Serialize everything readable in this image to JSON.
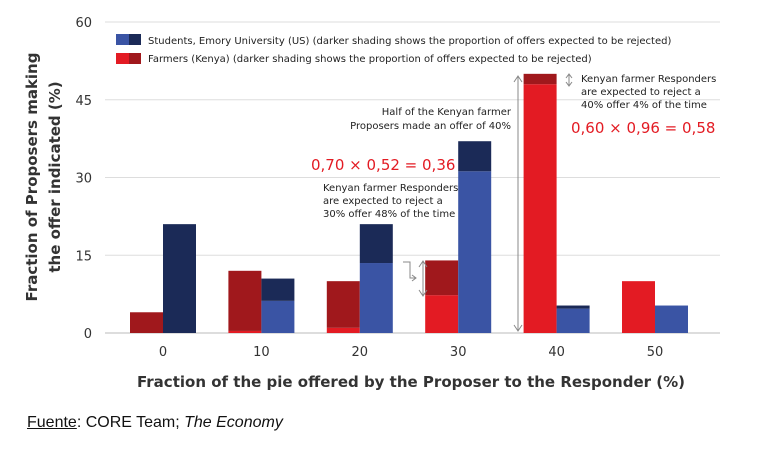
{
  "chart_data": {
    "type": "bar",
    "xlabel": "Fraction of the pie offered by the Proposer to the Responder (%)",
    "ylabel_line1": "Fraction of Proposers making",
    "ylabel_line2": "the offer indicated  (%)",
    "ylim": [
      0,
      60
    ],
    "yticks": [
      "0",
      "15",
      "30",
      "45",
      "60"
    ],
    "categories": [
      "0",
      "10",
      "20",
      "30",
      "40",
      "50"
    ],
    "grid": "horizontal",
    "legend_position": "top-left",
    "series": [
      {
        "key": "kenya",
        "name": "Farmers (Kenya) (darker shading shows the proportion of offers expected to be rejected)",
        "color_light": "#e31b23",
        "color_dark": "#a0181c",
        "totals": [
          4,
          12,
          10,
          14,
          50,
          10
        ],
        "rejected": [
          4,
          11.6,
          9,
          6.7,
          2,
          0
        ]
      },
      {
        "key": "emory",
        "name": "Students, Emory University (US) (darker shading shows the proportion of offers expected to be rejected)",
        "color_light": "#3a54a4",
        "color_dark": "#1b2a57",
        "totals": [
          21,
          10.5,
          21,
          37,
          5.3,
          5.3
        ],
        "rejected": [
          21,
          4.3,
          7.5,
          5.8,
          0.6,
          0
        ]
      }
    ],
    "annotations": {
      "half_line1": "Half of the Kenyan farmer",
      "half_line2": "Proposers made an offer of 40%",
      "formula30": "0,70 × 0,52 = 0,36",
      "reject30_line1": "Kenyan farmer Responders",
      "reject30_line2": "are expected to reject a",
      "reject30_line3": "30% offer 48% of the time",
      "reject40_line1": "Kenyan farmer Responders",
      "reject40_line2": "are expected to reject a",
      "reject40_line3": "40% offer 4% of the time",
      "formula40": "0,60 × 0,96 = 0,58"
    }
  },
  "source": {
    "label": "Fuente",
    "sep": ": ",
    "org": "CORE Team; ",
    "work": "The Economy"
  }
}
